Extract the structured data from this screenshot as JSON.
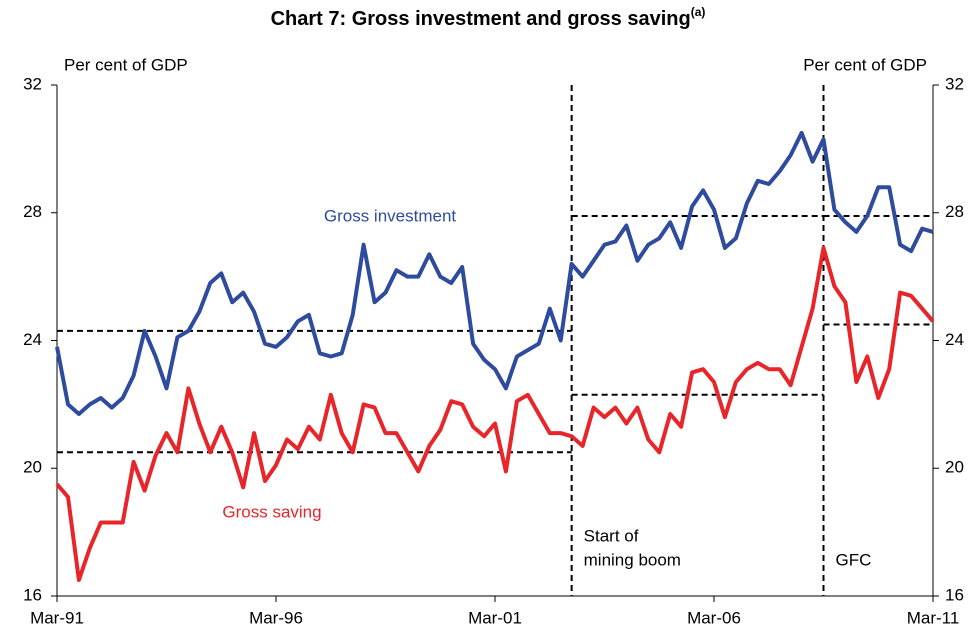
{
  "chart_data": {
    "type": "line",
    "title": "Chart 7: Gross investment and gross saving",
    "title_note": "(a)",
    "y_label": "Per cent of GDP",
    "y2_label": "Per cent of GDP",
    "categories": [
      "Mar-91",
      null,
      null,
      null,
      null,
      null,
      null,
      null,
      null,
      null,
      null,
      null,
      null,
      null,
      null,
      null,
      null,
      null,
      null,
      null,
      "Mar-96",
      null,
      null,
      null,
      null,
      null,
      null,
      null,
      null,
      null,
      null,
      null,
      null,
      null,
      null,
      null,
      null,
      null,
      null,
      null,
      "Mar-01",
      null,
      null,
      null,
      null,
      null,
      null,
      null,
      null,
      null,
      null,
      null,
      null,
      null,
      null,
      null,
      null,
      null,
      null,
      null,
      "Mar-06",
      null,
      null,
      null,
      null,
      null,
      null,
      null,
      null,
      null,
      null,
      null,
      null,
      null,
      null,
      null,
      null,
      null,
      null,
      null,
      "Mar-11"
    ],
    "ylim": [
      16,
      32
    ],
    "yticks": [
      16,
      20,
      24,
      28,
      32
    ],
    "y2lim": [
      16,
      32
    ],
    "y2ticks": [
      16,
      20,
      24,
      28,
      32
    ],
    "series": [
      {
        "name": "Gross investment",
        "color": "#2f4b9e",
        "values": [
          23.8,
          22.0,
          21.7,
          22.0,
          22.2,
          21.9,
          22.2,
          22.9,
          24.3,
          23.5,
          22.5,
          24.1,
          24.3,
          24.9,
          25.8,
          26.1,
          25.2,
          25.5,
          24.9,
          23.9,
          23.8,
          24.1,
          24.6,
          24.8,
          23.6,
          23.5,
          23.6,
          24.8,
          27.0,
          25.2,
          25.5,
          26.2,
          26.0,
          26.0,
          26.7,
          26.0,
          25.8,
          26.3,
          23.9,
          23.4,
          23.1,
          22.5,
          23.5,
          23.7,
          23.9,
          25.0,
          24.0,
          26.4,
          26.0,
          26.5,
          27.0,
          27.1,
          27.6,
          26.5,
          27.0,
          27.2,
          27.7,
          26.9,
          28.2,
          28.7,
          28.1,
          26.9,
          27.2,
          28.3,
          29.0,
          28.9,
          29.3,
          29.8,
          30.5,
          29.6,
          30.3,
          28.1,
          27.7,
          27.4,
          27.9,
          28.8,
          28.8,
          27.0,
          26.8,
          27.5,
          27.4
        ],
        "averages": [
          {
            "value": 24.3,
            "from": 0,
            "to": 47
          },
          {
            "value": 27.9,
            "from": 47,
            "to": 70
          },
          {
            "value": 27.9,
            "from": 70,
            "to": 80
          }
        ]
      },
      {
        "name": "Gross saving",
        "color": "#e8262a",
        "values": [
          19.5,
          19.1,
          16.5,
          17.5,
          18.3,
          18.3,
          18.3,
          20.2,
          19.3,
          20.4,
          21.1,
          20.5,
          22.5,
          21.4,
          20.5,
          21.3,
          20.5,
          19.4,
          21.1,
          19.6,
          20.1,
          20.9,
          20.6,
          21.3,
          20.9,
          22.3,
          21.1,
          20.5,
          22.0,
          21.9,
          21.1,
          21.1,
          20.5,
          19.9,
          20.7,
          21.2,
          22.1,
          22.0,
          21.3,
          21.0,
          21.4,
          19.9,
          22.1,
          22.3,
          21.7,
          21.1,
          21.1,
          21.0,
          20.7,
          21.9,
          21.6,
          21.9,
          21.4,
          21.9,
          20.9,
          20.5,
          21.7,
          21.3,
          23.0,
          23.1,
          22.7,
          21.6,
          22.7,
          23.1,
          23.3,
          23.1,
          23.1,
          22.6,
          23.8,
          25.0,
          26.9,
          25.7,
          25.2,
          22.7,
          23.5,
          22.2,
          23.1,
          25.5,
          25.4,
          25.0,
          24.6
        ],
        "averages": [
          {
            "value": 20.5,
            "from": 0,
            "to": 47
          },
          {
            "value": 22.3,
            "from": 47,
            "to": 70
          },
          {
            "value": 24.5,
            "from": 70,
            "to": 80
          }
        ]
      }
    ],
    "periods": [
      {
        "start": 47,
        "label": [
          "Start of",
          "mining boom"
        ]
      },
      {
        "start": 70,
        "label": [
          "GFC"
        ]
      }
    ]
  }
}
